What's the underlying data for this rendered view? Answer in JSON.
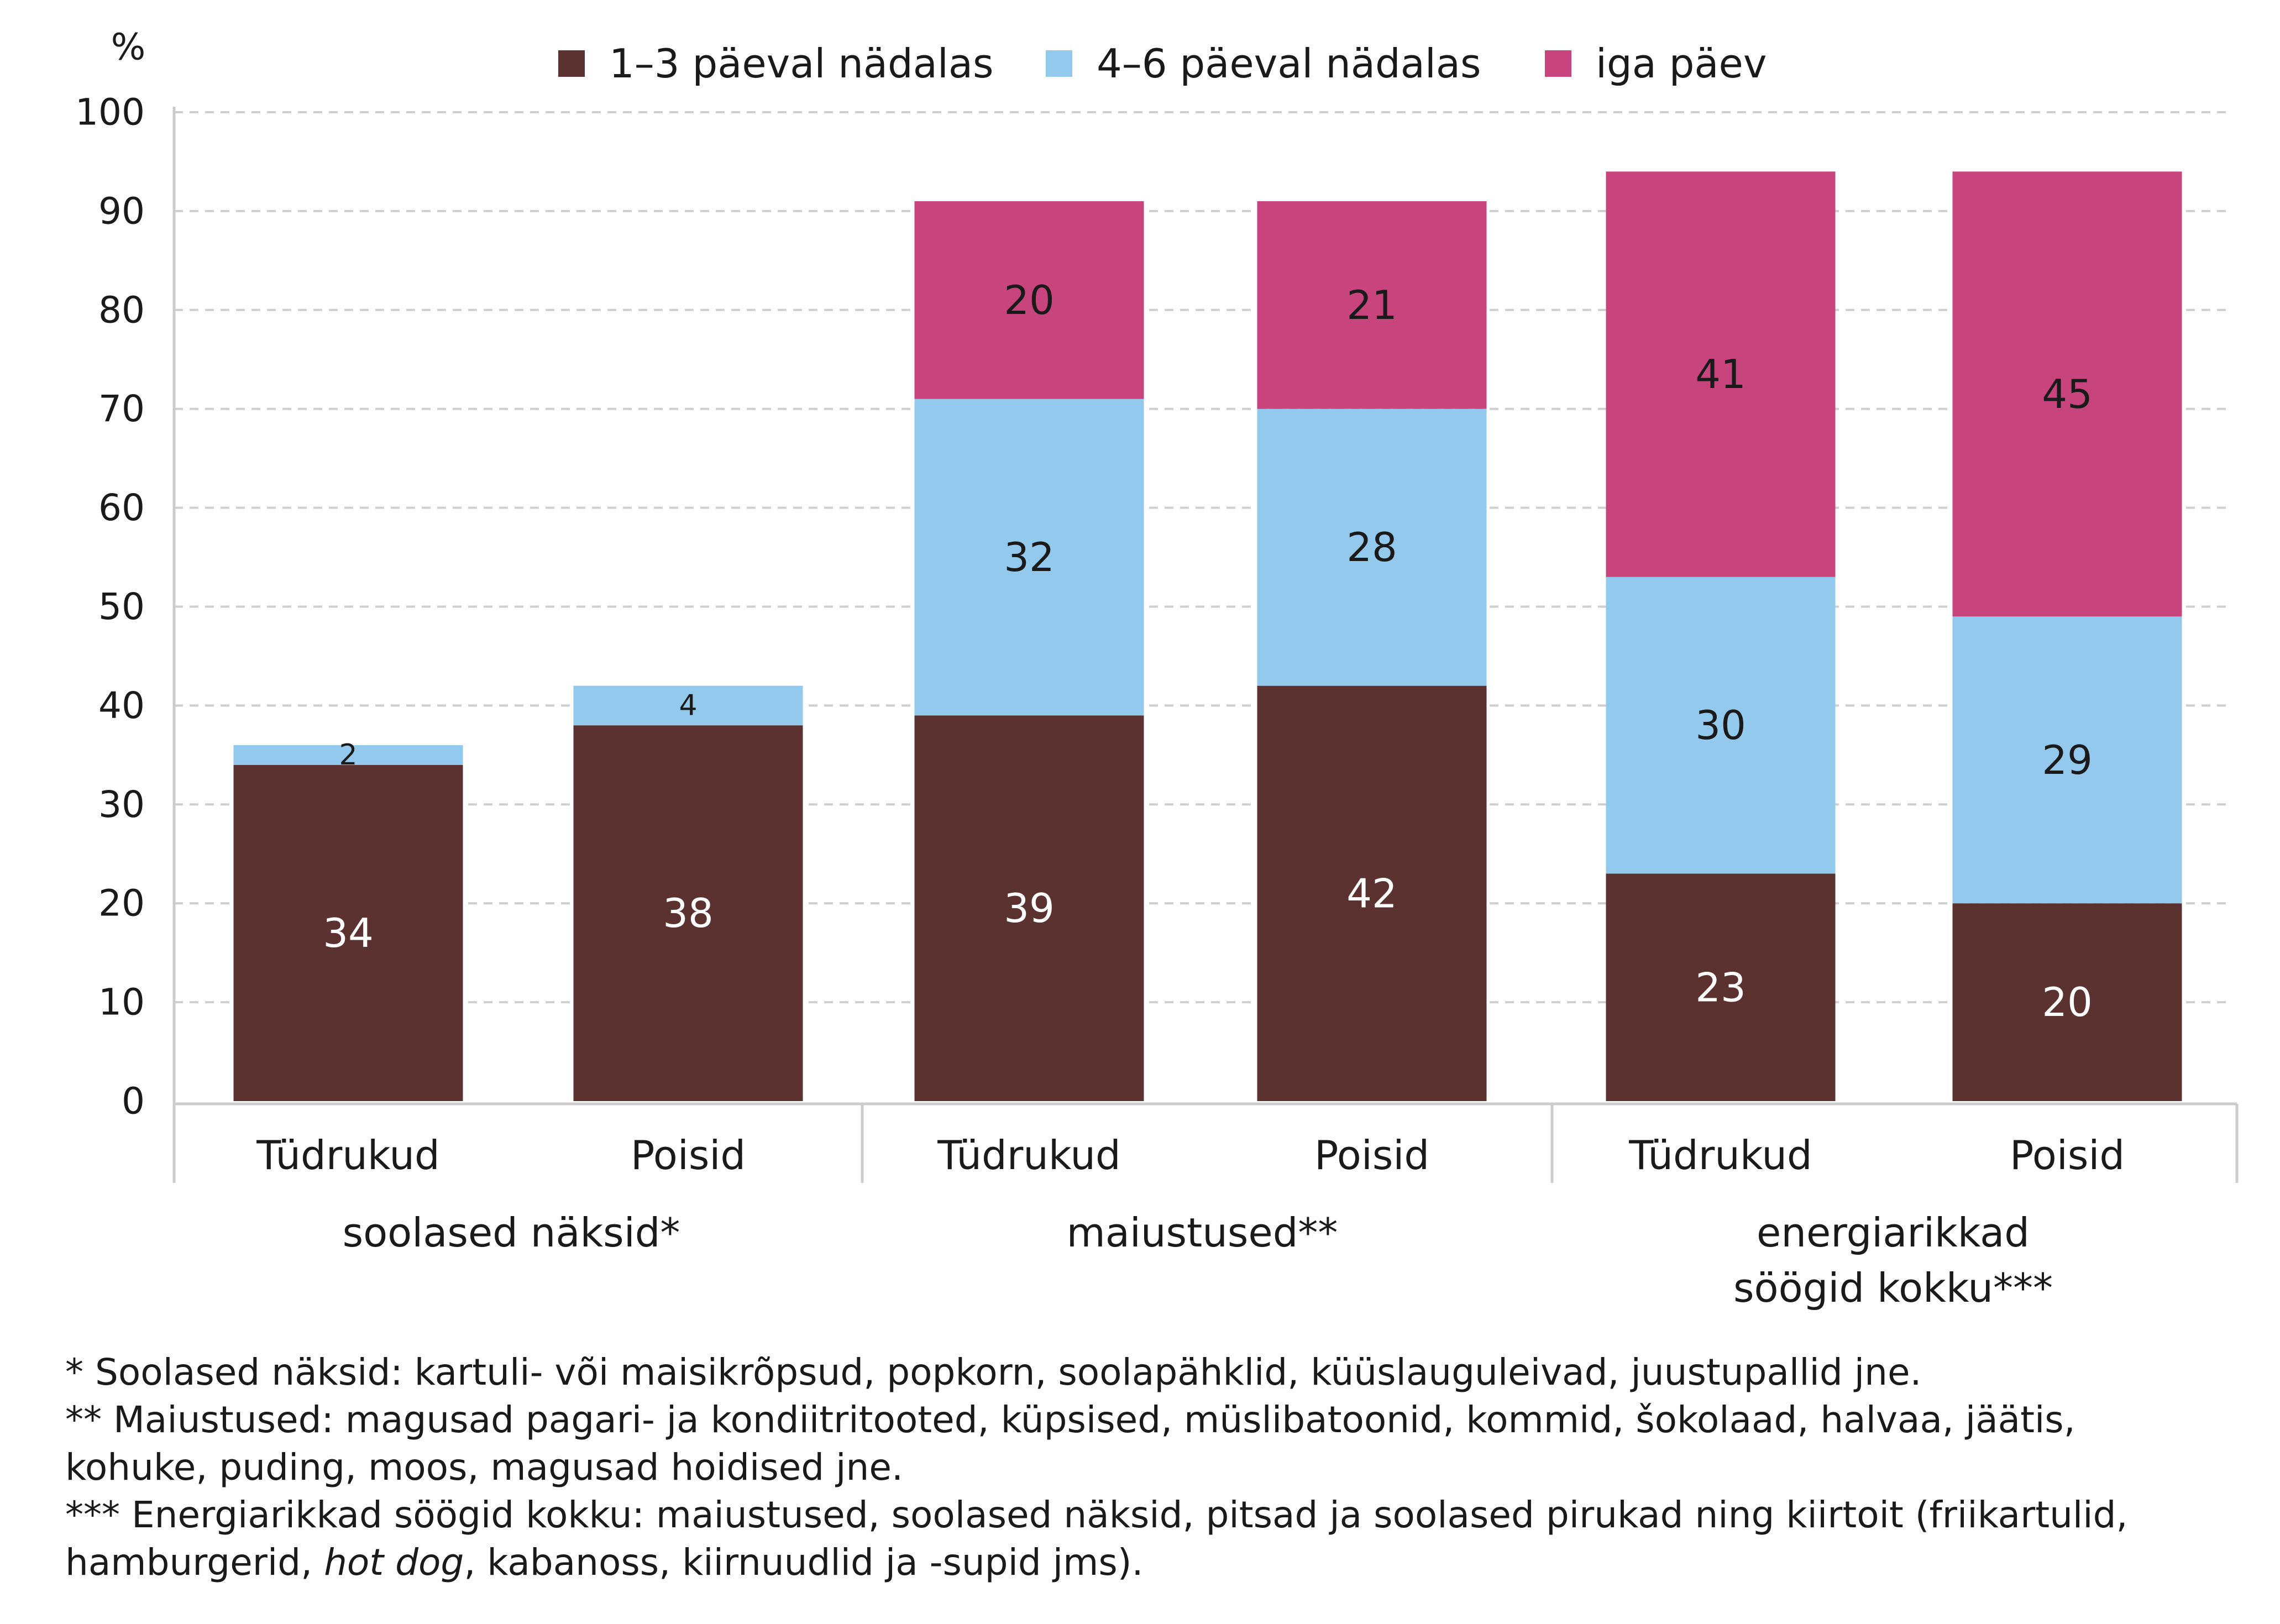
{
  "chart_data": {
    "type": "bar",
    "stacked": true,
    "unit_label": "%",
    "ylim": [
      0,
      100
    ],
    "yticks": [
      0,
      10,
      20,
      30,
      40,
      50,
      60,
      70,
      80,
      90,
      100
    ],
    "grid": true,
    "legend_position": "top",
    "groups": [
      {
        "label": "soolased näksid*",
        "bars": [
          "Tüdrukud",
          "Poisid"
        ]
      },
      {
        "label": "maiustused**",
        "bars": [
          "Tüdrukud",
          "Poisid"
        ]
      },
      {
        "label": "energiarikkad söögid kokku***",
        "label_lines": [
          "energiarikkad",
          "söögid kokku***"
        ],
        "bars": [
          "Tüdrukud",
          "Poisid"
        ]
      }
    ],
    "categories": [
      "Tüdrukud",
      "Poisid",
      "Tüdrukud",
      "Poisid",
      "Tüdrukud",
      "Poisid"
    ],
    "series": [
      {
        "name": "1–3 päeval nädalas",
        "color": "#5c3230",
        "label_color": "#ffffff",
        "values": [
          34,
          38,
          39,
          42,
          23,
          20
        ]
      },
      {
        "name": "4–6 päeval nädalas",
        "color": "#93c9ec",
        "label_color": "#1a1a1a",
        "values": [
          2,
          4,
          32,
          28,
          30,
          29
        ]
      },
      {
        "name": "iga päev",
        "color": "#c7447c",
        "label_color": "#1a1a1a",
        "values": [
          null,
          null,
          20,
          21,
          41,
          45
        ]
      }
    ]
  },
  "footnotes": {
    "n1": "* Soolased näksid: kartuli- või maisikrõpsud, popkorn, soolapähklid, küüslauguleivad, juustupallid jne.",
    "n2a": "** Maiustused: magusad pagari- ja kondiitritooted, küpsised, müslibatoonid, kommid, šokolaad, halvaa, jäätis,",
    "n2b": "kohuke, puding, moos, magusad hoidised jne.",
    "n3a": "*** Energiarikkad söögid kokku: maiustused, soolased näksid, pitsad ja soolased pirukad ning kiirtoit (friikartulid,",
    "n3b_pre": "hamburgerid, ",
    "n3b_it": "hot dog",
    "n3b_post": ", kabanoss, kiirnuudlid ja -supid jms)."
  }
}
